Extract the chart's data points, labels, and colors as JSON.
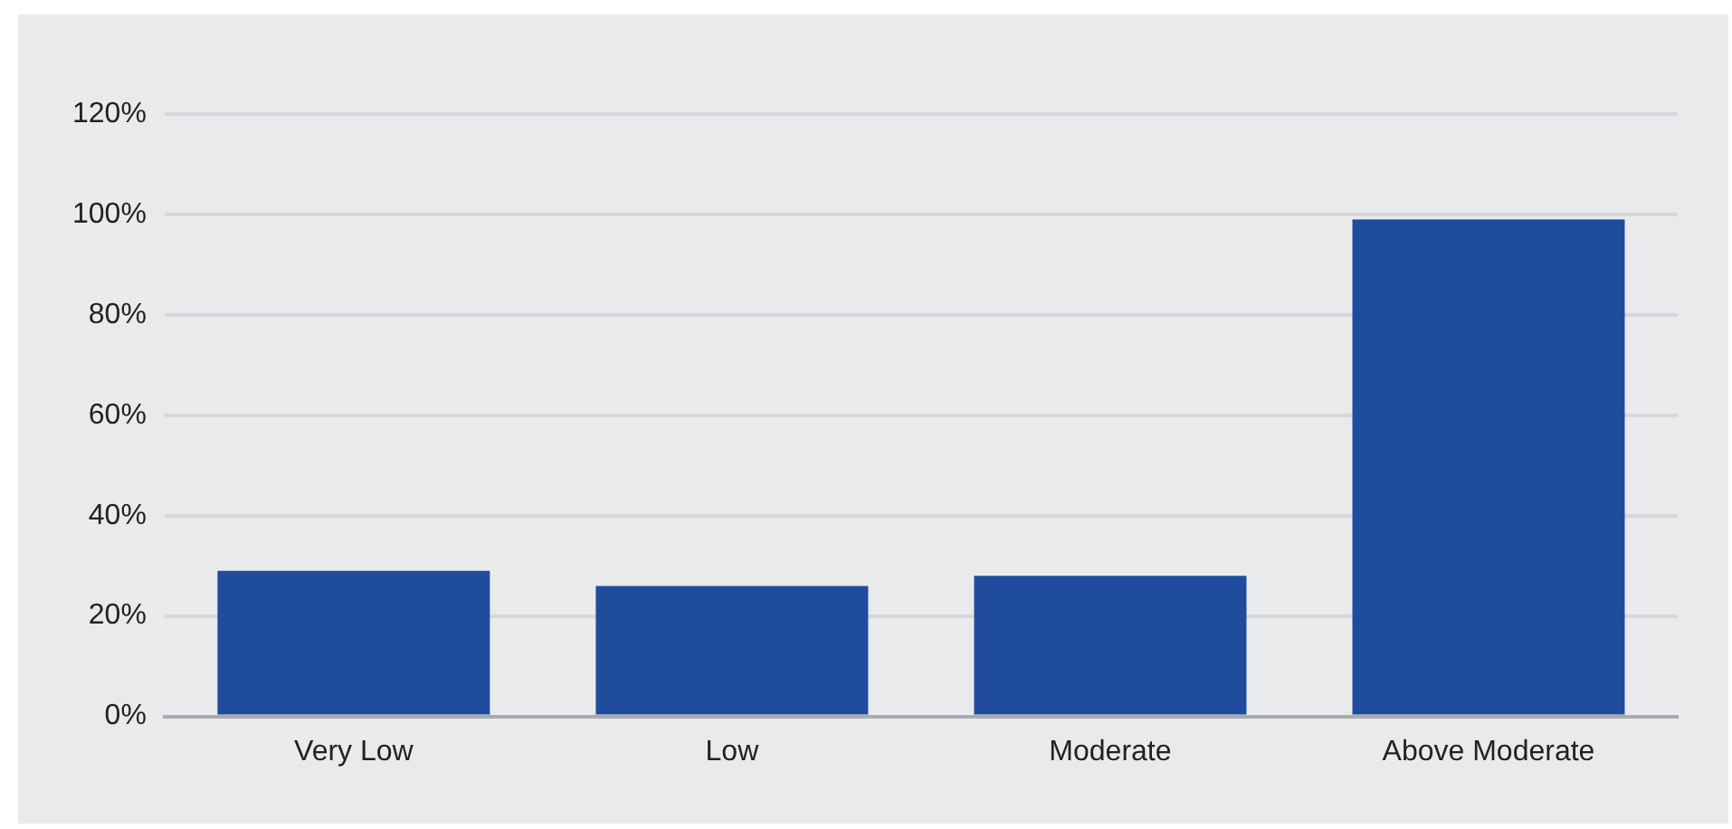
{
  "chart_data": {
    "type": "bar",
    "categories": [
      "Very Low",
      "Low",
      "Moderate",
      "Above Moderate"
    ],
    "values": [
      29,
      26,
      28,
      99
    ],
    "color": "#1f4c9d",
    "ylim": [
      0,
      120
    ],
    "yticks": [
      {
        "value": 0,
        "label": "0%"
      },
      {
        "value": 20,
        "label": "20%"
      },
      {
        "value": 40,
        "label": "40%"
      },
      {
        "value": 60,
        "label": "60%"
      },
      {
        "value": 80,
        "label": "80%"
      },
      {
        "value": 100,
        "label": "100%"
      },
      {
        "value": 120,
        "label": "120%"
      }
    ],
    "grid": "y",
    "legend": false
  }
}
